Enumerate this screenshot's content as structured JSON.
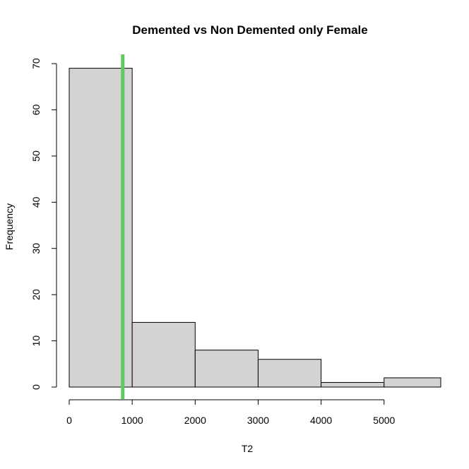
{
  "chart_data": {
    "type": "bar",
    "title": "Demented vs Non Demented only Female",
    "xlabel": "T2",
    "ylabel": "Frequency",
    "bins": [
      {
        "start": 0,
        "end": 1000,
        "count": 69
      },
      {
        "start": 1000,
        "end": 2000,
        "count": 14
      },
      {
        "start": 2000,
        "end": 3000,
        "count": 8
      },
      {
        "start": 3000,
        "end": 4000,
        "count": 6
      },
      {
        "start": 4000,
        "end": 5000,
        "count": 1
      },
      {
        "start": 5000,
        "end": 6000,
        "count": 2
      }
    ],
    "x_ticks": [
      0,
      1000,
      2000,
      3000,
      4000,
      5000
    ],
    "y_ticks": [
      0,
      10,
      20,
      30,
      40,
      50,
      60,
      70
    ],
    "xlim": [
      0,
      5900
    ],
    "ylim": [
      0,
      72
    ],
    "reference_line": {
      "x": 850,
      "color": "#5fc85f"
    },
    "bar_fill": "#d3d3d3",
    "bar_stroke": "#000000",
    "grid": false
  }
}
